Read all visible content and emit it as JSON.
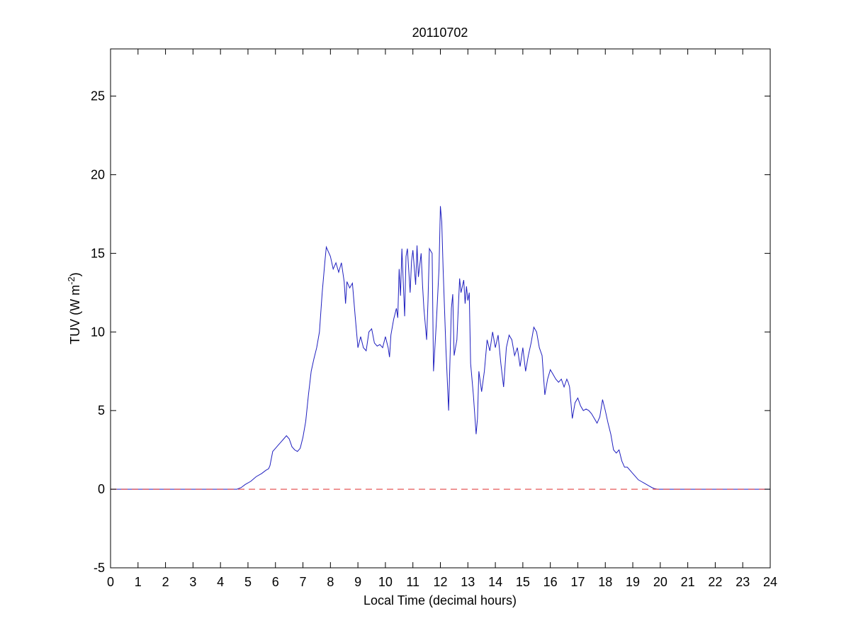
{
  "chart_data": {
    "type": "line",
    "title": "20110702",
    "xlabel": "Local Time (decimal hours)",
    "ylabel": "TUV (W m-2)",
    "ylabel_main": "TUV (W m",
    "ylabel_sup": "-2",
    "ylabel_close": ")",
    "xlim": [
      0,
      24
    ],
    "ylim": [
      -5,
      28
    ],
    "x_ticks": [
      0,
      1,
      2,
      3,
      4,
      5,
      6,
      7,
      8,
      9,
      10,
      11,
      12,
      13,
      14,
      15,
      16,
      17,
      18,
      19,
      20,
      21,
      22,
      23,
      24
    ],
    "x_tick_labels": [
      "0",
      "1",
      "2",
      "3",
      "4",
      "5",
      "6",
      "7",
      "8",
      "9",
      "10",
      "11",
      "12",
      "13",
      "14",
      "15",
      "16",
      "17",
      "18",
      "19",
      "20",
      "21",
      "22",
      "23",
      "24"
    ],
    "y_ticks": [
      -5,
      0,
      5,
      10,
      15,
      20,
      25
    ],
    "y_tick_labels": [
      "-5",
      "0",
      "5",
      "10",
      "15",
      "20",
      "25"
    ],
    "grid": false,
    "series": [
      {
        "line_style": "solid",
        "color": "#1f1fbf",
        "x": [
          0,
          4.6,
          4.75,
          4.9,
          5.1,
          5.3,
          5.5,
          5.65,
          5.75,
          5.8,
          5.9,
          6.0,
          6.1,
          6.2,
          6.3,
          6.4,
          6.5,
          6.6,
          6.7,
          6.8,
          6.9,
          7.0,
          7.1,
          7.2,
          7.3,
          7.4,
          7.5,
          7.6,
          7.7,
          7.8,
          7.85,
          7.9,
          8.0,
          8.1,
          8.2,
          8.3,
          8.4,
          8.5,
          8.55,
          8.6,
          8.7,
          8.8,
          8.9,
          9.0,
          9.1,
          9.2,
          9.3,
          9.4,
          9.5,
          9.6,
          9.7,
          9.8,
          9.9,
          10.0,
          10.1,
          10.15,
          10.2,
          10.3,
          10.4,
          10.45,
          10.5,
          10.55,
          10.6,
          10.7,
          10.75,
          10.8,
          10.9,
          10.95,
          11.0,
          11.1,
          11.15,
          11.2,
          11.3,
          11.35,
          11.4,
          11.5,
          11.55,
          11.6,
          11.7,
          11.75,
          11.85,
          11.95,
          12.0,
          12.05,
          12.1,
          12.2,
          12.3,
          12.4,
          12.45,
          12.5,
          12.6,
          12.7,
          12.75,
          12.85,
          12.9,
          12.95,
          13.0,
          13.05,
          13.1,
          13.2,
          13.3,
          13.35,
          13.4,
          13.5,
          13.6,
          13.7,
          13.8,
          13.9,
          14.0,
          14.1,
          14.2,
          14.3,
          14.4,
          14.5,
          14.6,
          14.7,
          14.8,
          14.9,
          15.0,
          15.1,
          15.2,
          15.3,
          15.4,
          15.5,
          15.6,
          15.7,
          15.8,
          15.9,
          16.0,
          16.1,
          16.2,
          16.3,
          16.4,
          16.5,
          16.6,
          16.65,
          16.7,
          16.8,
          16.9,
          17.0,
          17.1,
          17.2,
          17.3,
          17.4,
          17.5,
          17.6,
          17.7,
          17.8,
          17.9,
          18.0,
          18.1,
          18.2,
          18.3,
          18.4,
          18.5,
          18.6,
          18.7,
          18.8,
          18.9,
          19.0,
          19.1,
          19.2,
          19.3,
          19.4,
          19.5,
          19.6,
          19.7,
          19.8,
          19.9,
          20.0,
          24
        ],
        "values": [
          0,
          0,
          0.1,
          0.3,
          0.5,
          0.8,
          1.0,
          1.2,
          1.3,
          1.5,
          2.4,
          2.6,
          2.8,
          3.0,
          3.2,
          3.4,
          3.2,
          2.7,
          2.5,
          2.4,
          2.6,
          3.3,
          4.3,
          6.0,
          7.5,
          8.3,
          9.0,
          10.0,
          12.5,
          14.5,
          15.4,
          15.2,
          14.8,
          14.0,
          14.4,
          13.8,
          14.4,
          13.2,
          11.8,
          13.2,
          12.8,
          13.1,
          11.0,
          9.0,
          9.7,
          9.0,
          8.8,
          10.0,
          10.2,
          9.3,
          9.1,
          9.2,
          9.0,
          9.7,
          9.0,
          8.4,
          9.8,
          10.8,
          11.5,
          10.9,
          14.0,
          12.3,
          15.3,
          11.0,
          14.8,
          15.3,
          12.5,
          14.5,
          15.2,
          13.0,
          15.5,
          13.5,
          15.0,
          13.0,
          11.5,
          9.5,
          12.0,
          15.3,
          15.0,
          7.5,
          10.5,
          14.0,
          18.0,
          17.0,
          14.0,
          9.0,
          5.0,
          11.5,
          12.4,
          8.5,
          9.5,
          13.4,
          12.5,
          13.3,
          11.8,
          12.9,
          12.0,
          12.5,
          8.0,
          6.0,
          3.5,
          4.5,
          7.5,
          6.2,
          7.5,
          9.5,
          8.8,
          10.0,
          9.0,
          9.8,
          8.0,
          6.5,
          9.0,
          9.8,
          9.5,
          8.5,
          9.0,
          7.8,
          9.0,
          7.5,
          8.5,
          9.3,
          10.3,
          10.0,
          9.0,
          8.5,
          6.0,
          7.0,
          7.6,
          7.3,
          7.0,
          6.8,
          7.0,
          6.5,
          7.0,
          6.8,
          6.5,
          4.5,
          5.5,
          5.8,
          5.3,
          5.0,
          5.1,
          5.0,
          4.8,
          4.5,
          4.2,
          4.6,
          5.7,
          5.0,
          4.2,
          3.5,
          2.5,
          2.3,
          2.5,
          1.8,
          1.4,
          1.4,
          1.2,
          1.0,
          0.8,
          0.6,
          0.5,
          0.4,
          0.3,
          0.2,
          0.1,
          0.03,
          0,
          0,
          0
        ]
      },
      {
        "line_style": "dashed",
        "color": "#e03030",
        "x": [
          0,
          24
        ],
        "values": [
          0,
          0
        ]
      }
    ]
  }
}
